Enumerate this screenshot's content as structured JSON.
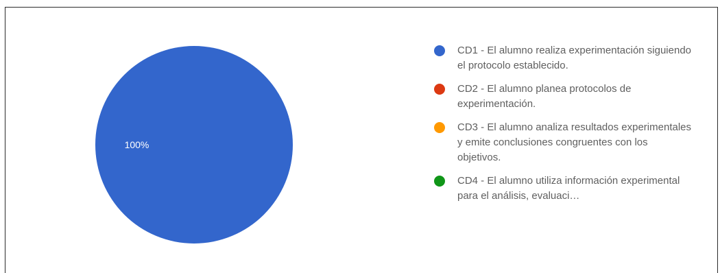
{
  "chart_data": {
    "type": "pie",
    "legend_position": "right",
    "slices": [
      {
        "label": "CD1 - El alumno realiza experimentación siguiendo el protocolo establecido.",
        "value": 100,
        "value_label": "100%",
        "color": "#3366cc"
      },
      {
        "label": "CD2 - El alumno planea protocolos de experimentación.",
        "value": 0,
        "color": "#dc3912"
      },
      {
        "label": "CD3 - El alumno analiza resultados experimentales y emite conclusiones congruentes con los objetivos.",
        "value": 0,
        "color": "#ff9900"
      },
      {
        "label": "CD4 - El alumno utiliza información experimental para el análisis, evaluaci…",
        "value": 0,
        "color": "#109618"
      }
    ]
  }
}
